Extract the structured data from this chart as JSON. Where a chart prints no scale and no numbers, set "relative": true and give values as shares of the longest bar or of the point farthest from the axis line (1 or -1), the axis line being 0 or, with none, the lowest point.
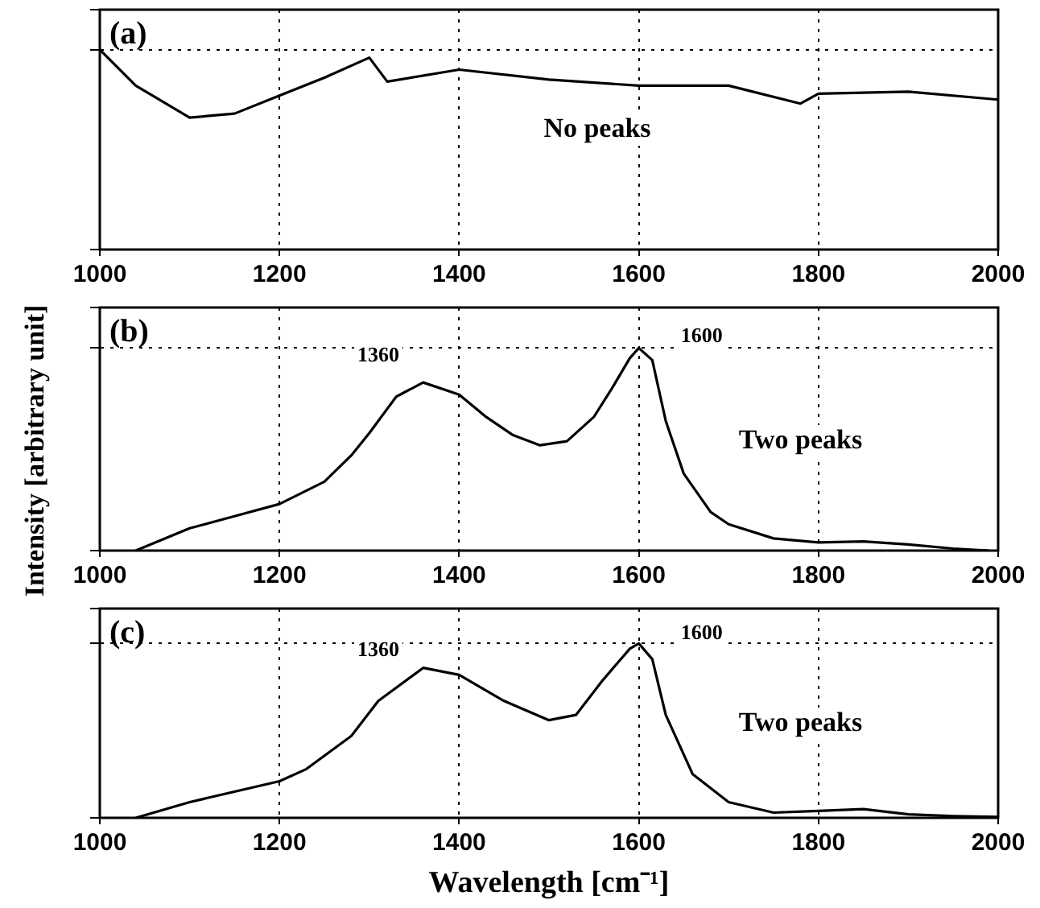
{
  "chart_data": [
    {
      "type": "line",
      "relative": true,
      "grid": true,
      "marker": "none",
      "line_style": "solid",
      "ylabel": "Intensity [arbitrary unit]",
      "xlim": [
        1000,
        2000
      ],
      "xticks": [
        1000,
        1200,
        1400,
        1600,
        1800,
        2000
      ],
      "annotations": [
        "(a)",
        "No peaks"
      ],
      "series": [
        {
          "color": "#000000",
          "x": [
            1000,
            1040,
            1100,
            1150,
            1200,
            1250,
            1300,
            1320,
            1400,
            1500,
            1600,
            1700,
            1780,
            1800,
            1900,
            2000
          ],
          "values": [
            1.0,
            0.82,
            0.66,
            0.68,
            0.77,
            0.86,
            0.96,
            0.84,
            0.9,
            0.85,
            0.82,
            0.82,
            0.73,
            0.78,
            0.79,
            0.75
          ]
        }
      ]
    },
    {
      "type": "line",
      "relative": true,
      "grid": true,
      "marker": "none",
      "line_style": "solid",
      "xlim": [
        1000,
        2000
      ],
      "xticks": [
        1000,
        1200,
        1400,
        1600,
        1800,
        2000
      ],
      "annotations": [
        "(b)",
        "Two peaks",
        "1360",
        "1600"
      ],
      "series": [
        {
          "color": "#000000",
          "x": [
            1040,
            1100,
            1150,
            1200,
            1250,
            1280,
            1300,
            1330,
            1360,
            1400,
            1430,
            1460,
            1490,
            1520,
            1550,
            1570,
            1590,
            1600,
            1615,
            1630,
            1650,
            1680,
            1700,
            1750,
            1800,
            1850,
            1900,
            1950,
            1990
          ],
          "values": [
            0,
            0.11,
            0.17,
            0.23,
            0.34,
            0.47,
            0.58,
            0.76,
            0.83,
            0.77,
            0.66,
            0.57,
            0.52,
            0.54,
            0.66,
            0.8,
            0.95,
            1.0,
            0.94,
            0.64,
            0.38,
            0.19,
            0.13,
            0.06,
            0.04,
            0.045,
            0.03,
            0.01,
            0
          ]
        }
      ]
    },
    {
      "type": "line",
      "relative": true,
      "grid": true,
      "marker": "none",
      "line_style": "solid",
      "xlabel": "Wavelength  [cm⁻¹]",
      "xlim": [
        1000,
        2000
      ],
      "xticks": [
        1000,
        1200,
        1400,
        1600,
        1800,
        2000
      ],
      "annotations": [
        "(c)",
        "Two peaks",
        "1360",
        "1600"
      ],
      "series": [
        {
          "color": "#000000",
          "x": [
            1040,
            1100,
            1200,
            1230,
            1280,
            1310,
            1360,
            1400,
            1450,
            1500,
            1530,
            1560,
            1590,
            1600,
            1615,
            1630,
            1660,
            1700,
            1750,
            1800,
            1850,
            1900,
            1950,
            2000
          ],
          "values": [
            0,
            0.09,
            0.21,
            0.28,
            0.47,
            0.67,
            0.86,
            0.82,
            0.67,
            0.56,
            0.59,
            0.79,
            0.97,
            1.0,
            0.91,
            0.59,
            0.25,
            0.09,
            0.03,
            0.04,
            0.05,
            0.02,
            0.01,
            0.005
          ]
        }
      ]
    }
  ]
}
